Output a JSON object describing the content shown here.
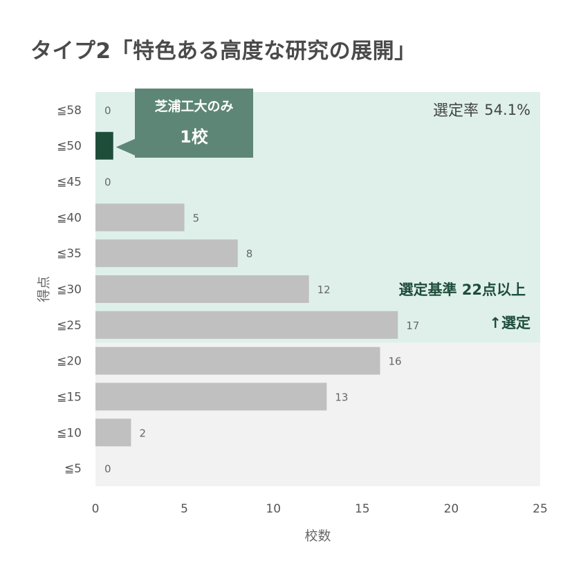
{
  "title": "タイプ2「特色ある高度な研究の展開」",
  "chart_data": {
    "type": "bar",
    "orientation": "horizontal",
    "categories": [
      "≦58",
      "≦50",
      "≦45",
      "≦40",
      "≦35",
      "≦30",
      "≦25",
      "≦20",
      "≦15",
      "≦10",
      "≦5"
    ],
    "values": [
      0,
      1,
      0,
      5,
      8,
      12,
      17,
      16,
      13,
      2,
      0
    ],
    "data_labels": [
      "0",
      "",
      "0",
      "5",
      "8",
      "12",
      "17",
      "16",
      "13",
      "2",
      "0"
    ],
    "highlight_index": 1,
    "xlabel": "校数",
    "ylabel": "得点",
    "xlim": [
      0,
      25
    ],
    "xticks": [
      "0",
      "5",
      "10",
      "15",
      "20",
      "25"
    ],
    "selected_region": {
      "from_category": "≦58",
      "to_category": "≦25"
    },
    "selection_rate": {
      "label": "選定率",
      "value": "54.1%"
    },
    "criteria_text": "選定基準 22点以上",
    "selected_text": "↑選定",
    "callout": {
      "line1": "芝浦工大のみ",
      "line2": "1校"
    },
    "colors": {
      "bar": "#c0c0c0",
      "highlight": "#1e4d3a",
      "selected_region": "#dff0eb",
      "unselected_region": "#f2f2f2",
      "callout_fill": "#5e8676",
      "accent_text": "#1f4d3b"
    }
  }
}
